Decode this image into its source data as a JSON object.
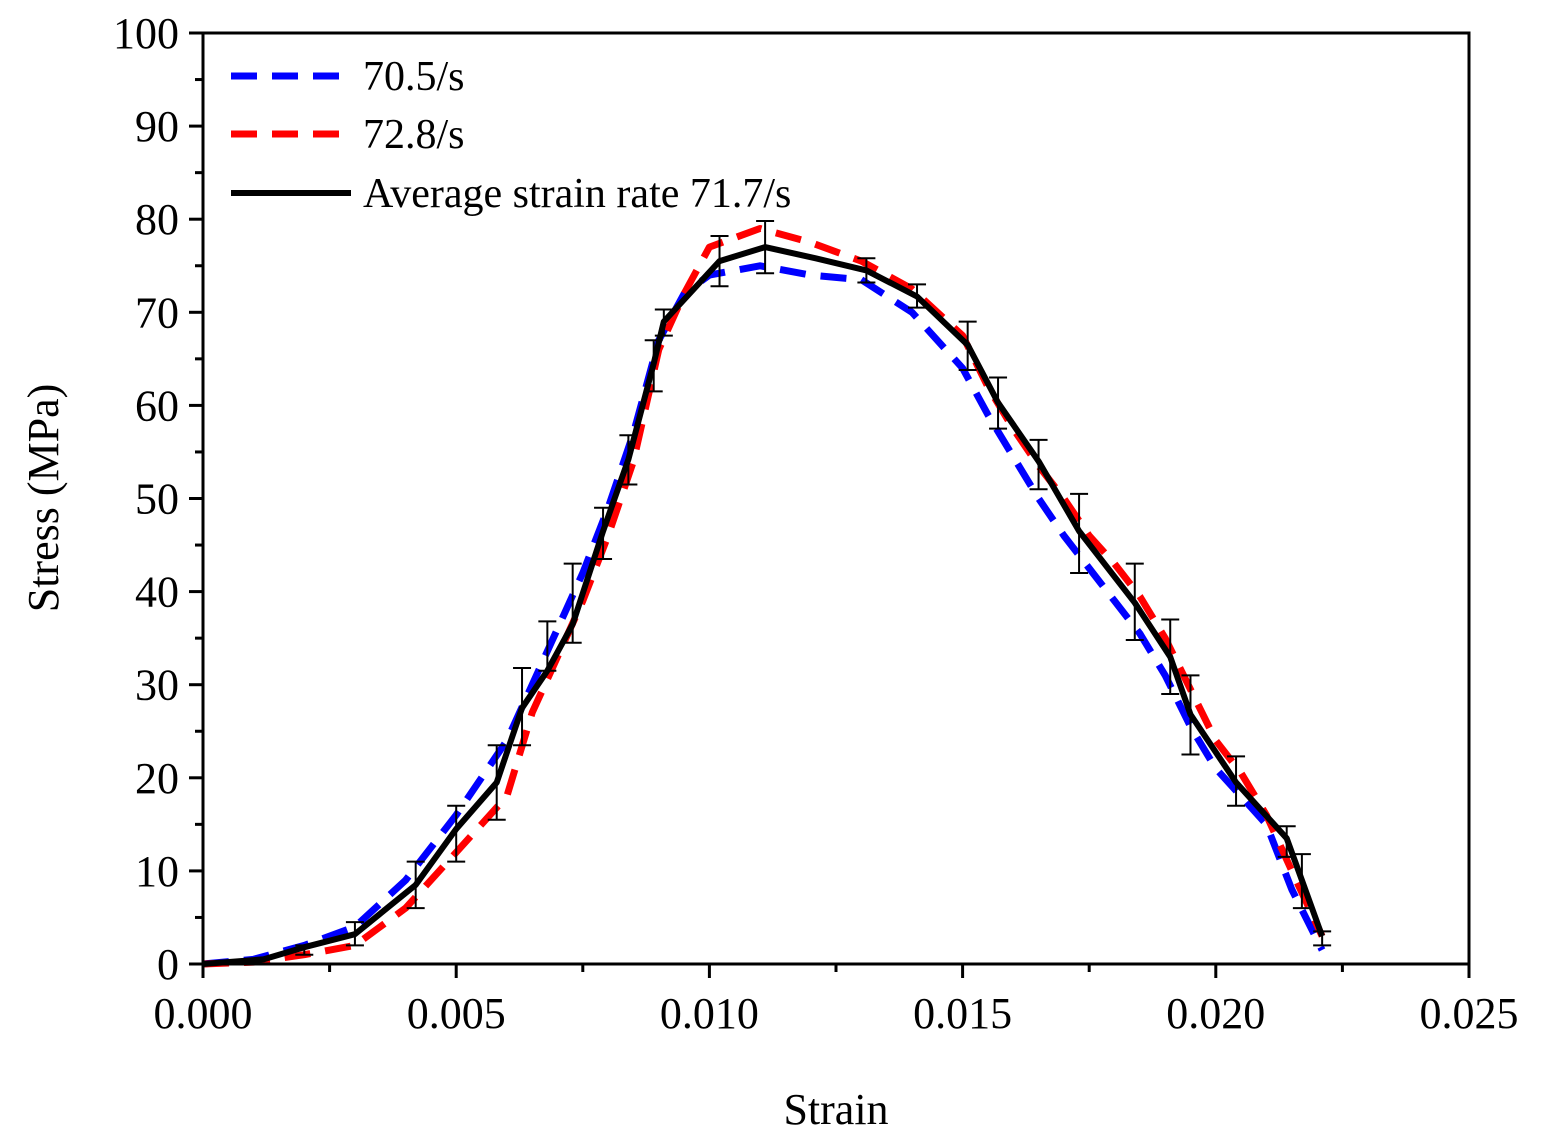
{
  "chart_data": {
    "type": "line",
    "title": "",
    "xlabel": "Strain",
    "ylabel": "Stress (MPa)",
    "xlim": [
      0,
      0.025
    ],
    "ylim": [
      0,
      100
    ],
    "xticks": [
      0.0,
      0.005,
      0.01,
      0.015,
      0.02,
      0.025
    ],
    "xtick_labels": [
      "0.000",
      "0.005",
      "0.010",
      "0.015",
      "0.020",
      "0.025"
    ],
    "yticks": [
      0,
      10,
      20,
      30,
      40,
      50,
      60,
      70,
      80,
      90,
      100
    ],
    "ytick_labels": [
      "0",
      "10",
      "20",
      "30",
      "40",
      "50",
      "60",
      "70",
      "80",
      "90",
      "100"
    ],
    "grid": false,
    "legend_position": "top-left",
    "series": [
      {
        "name": "70.5/s",
        "color": "#0000ff",
        "style": "dashed",
        "x": [
          0.0,
          0.001,
          0.002,
          0.003,
          0.004,
          0.005,
          0.006,
          0.0065,
          0.007,
          0.0075,
          0.008,
          0.0085,
          0.009,
          0.0095,
          0.01,
          0.011,
          0.012,
          0.013,
          0.014,
          0.015,
          0.0155,
          0.016,
          0.0165,
          0.017,
          0.0175,
          0.018,
          0.0185,
          0.019,
          0.0195,
          0.02,
          0.0205,
          0.021,
          0.0215,
          0.0221
        ],
        "values": [
          0,
          0.5,
          2,
          4,
          9,
          16,
          24,
          30,
          36,
          42,
          49,
          57,
          67,
          72,
          74,
          75,
          74,
          73.5,
          70,
          64,
          59,
          54.5,
          50,
          46,
          42.5,
          39,
          35.5,
          31,
          25.5,
          21,
          18,
          15,
          8,
          1.5
        ]
      },
      {
        "name": "72.8/s",
        "color": "#ff0000",
        "style": "dashed",
        "x": [
          0.0,
          0.001,
          0.002,
          0.003,
          0.004,
          0.005,
          0.006,
          0.0065,
          0.007,
          0.0075,
          0.008,
          0.0085,
          0.009,
          0.0095,
          0.01,
          0.011,
          0.012,
          0.013,
          0.014,
          0.015,
          0.0155,
          0.016,
          0.0165,
          0.017,
          0.0175,
          0.018,
          0.0185,
          0.019,
          0.0195,
          0.02,
          0.0205,
          0.021,
          0.0215,
          0.0221
        ],
        "values": [
          0,
          0.2,
          1,
          2,
          6,
          12,
          18,
          27,
          33,
          39,
          46,
          54,
          66,
          72,
          77,
          79,
          77.5,
          75.5,
          72.5,
          67.5,
          62,
          57.5,
          53.5,
          50,
          46,
          43,
          39.5,
          35,
          29.5,
          24,
          20.5,
          16,
          10,
          3
        ]
      },
      {
        "name": "Average strain rate 71.7/s",
        "color": "#000000",
        "style": "solid",
        "x": [
          0.0,
          0.0012,
          0.002,
          0.003,
          0.0042,
          0.005,
          0.0058,
          0.0063,
          0.0068,
          0.0073,
          0.0079,
          0.0084,
          0.0089,
          0.0091,
          0.0102,
          0.0111,
          0.0121,
          0.0131,
          0.0141,
          0.0151,
          0.0157,
          0.0165,
          0.0173,
          0.0184,
          0.0191,
          0.0195,
          0.0204,
          0.0214,
          0.0217,
          0.0221
        ],
        "values": [
          0,
          0.5,
          1.8,
          3.2,
          8.5,
          14.5,
          19.5,
          27.5,
          31.5,
          36.5,
          46.5,
          54.2,
          64.5,
          69,
          75.5,
          77,
          75.8,
          74.5,
          71.7,
          66.5,
          60.3,
          54,
          46.5,
          38.8,
          33,
          26.8,
          19.5,
          13.5,
          9,
          3
        ]
      }
    ],
    "error_bars": {
      "series": "Average strain rate 71.7/s",
      "x": [
        0.002,
        0.003,
        0.0042,
        0.005,
        0.0058,
        0.0063,
        0.0068,
        0.0073,
        0.0079,
        0.0084,
        0.0089,
        0.0091,
        0.0102,
        0.0111,
        0.0131,
        0.0141,
        0.0151,
        0.0157,
        0.0165,
        0.0173,
        0.0184,
        0.0191,
        0.0195,
        0.0204,
        0.0214,
        0.0217,
        0.0221
      ],
      "low": [
        1,
        2,
        6,
        11,
        15.5,
        23.5,
        31.5,
        34.5,
        43.5,
        51.5,
        61.5,
        67.5,
        72.8,
        74.2,
        73.2,
        70.5,
        63.8,
        57.5,
        51,
        42,
        34.8,
        29,
        22.5,
        17,
        11.5,
        6,
        2
      ],
      "high": [
        2,
        4.5,
        11,
        17,
        23.5,
        31.8,
        36.8,
        43,
        49,
        56.8,
        67,
        70.3,
        78.2,
        79.8,
        75.8,
        73,
        69,
        63,
        56.3,
        50.5,
        43,
        37,
        31,
        22.3,
        14.8,
        11.8,
        3.5
      ]
    }
  }
}
